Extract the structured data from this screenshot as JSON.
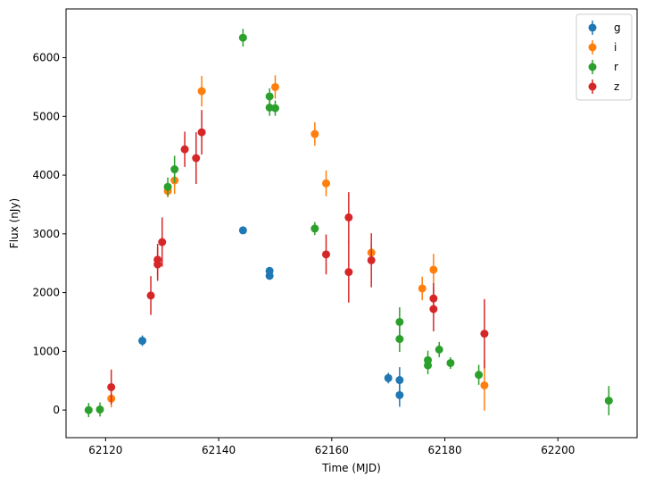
{
  "chart_data": {
    "type": "scatter",
    "xlabel": "Time (MJD)",
    "ylabel": "Flux (nJy)",
    "xlim": [
      62113,
      62214
    ],
    "ylim": [
      -470,
      6830
    ],
    "xticks": [
      62120,
      62140,
      62160,
      62180,
      62200
    ],
    "yticks": [
      0,
      1000,
      2000,
      3000,
      4000,
      5000,
      6000
    ],
    "grid": false,
    "legend_position": "top-right",
    "series": [
      {
        "name": "g",
        "color": "#1f77b4",
        "points": [
          {
            "x": 62126.5,
            "y": 1180,
            "err": 90
          },
          {
            "x": 62144.3,
            "y": 3060,
            "err": 50
          },
          {
            "x": 62149.0,
            "y": 2370,
            "err": 50
          },
          {
            "x": 62149.0,
            "y": 2285,
            "err": 50
          },
          {
            "x": 62170.0,
            "y": 545,
            "err": 90
          },
          {
            "x": 62172.0,
            "y": 510,
            "err": 220
          },
          {
            "x": 62172.0,
            "y": 255,
            "err": 200
          }
        ]
      },
      {
        "name": "i",
        "color": "#ff7f0e",
        "points": [
          {
            "x": 62121.0,
            "y": 195,
            "err": 150
          },
          {
            "x": 62131.0,
            "y": 3730,
            "err": 110
          },
          {
            "x": 62132.2,
            "y": 3910,
            "err": 230
          },
          {
            "x": 62137.0,
            "y": 5430,
            "err": 260
          },
          {
            "x": 62150.0,
            "y": 5500,
            "err": 200
          },
          {
            "x": 62157.0,
            "y": 4700,
            "err": 200
          },
          {
            "x": 62159.0,
            "y": 3860,
            "err": 220
          },
          {
            "x": 62167.0,
            "y": 2680,
            "err": 160
          },
          {
            "x": 62176.0,
            "y": 2070,
            "err": 200
          },
          {
            "x": 62178.0,
            "y": 2390,
            "err": 270
          },
          {
            "x": 62187.0,
            "y": 420,
            "err": 430
          }
        ]
      },
      {
        "name": "r",
        "color": "#2ca02c",
        "points": [
          {
            "x": 62117.0,
            "y": 0,
            "err": 120
          },
          {
            "x": 62119.0,
            "y": 10,
            "err": 120
          },
          {
            "x": 62131.0,
            "y": 3800,
            "err": 160
          },
          {
            "x": 62132.2,
            "y": 4100,
            "err": 230
          },
          {
            "x": 62144.3,
            "y": 6340,
            "err": 150
          },
          {
            "x": 62149.0,
            "y": 5340,
            "err": 140
          },
          {
            "x": 62149.0,
            "y": 5150,
            "err": 140
          },
          {
            "x": 62150.0,
            "y": 5140,
            "err": 130
          },
          {
            "x": 62157.0,
            "y": 3090,
            "err": 110
          },
          {
            "x": 62172.0,
            "y": 1500,
            "err": 250
          },
          {
            "x": 62172.0,
            "y": 1210,
            "err": 220
          },
          {
            "x": 62177.0,
            "y": 850,
            "err": 160
          },
          {
            "x": 62177.0,
            "y": 760,
            "err": 150
          },
          {
            "x": 62179.0,
            "y": 1030,
            "err": 130
          },
          {
            "x": 62181.0,
            "y": 800,
            "err": 100
          },
          {
            "x": 62186.0,
            "y": 600,
            "err": 170
          },
          {
            "x": 62209.0,
            "y": 160,
            "err": 250
          }
        ]
      },
      {
        "name": "z",
        "color": "#d62728",
        "points": [
          {
            "x": 62121.0,
            "y": 390,
            "err": 300
          },
          {
            "x": 62128.0,
            "y": 1950,
            "err": 330
          },
          {
            "x": 62129.2,
            "y": 2560,
            "err": 270
          },
          {
            "x": 62129.2,
            "y": 2480,
            "err": 280
          },
          {
            "x": 62130.0,
            "y": 2860,
            "err": 420
          },
          {
            "x": 62134.0,
            "y": 4440,
            "err": 300
          },
          {
            "x": 62136.0,
            "y": 4290,
            "err": 440
          },
          {
            "x": 62137.0,
            "y": 4730,
            "err": 380
          },
          {
            "x": 62159.0,
            "y": 2650,
            "err": 340
          },
          {
            "x": 62163.0,
            "y": 3280,
            "err": 430
          },
          {
            "x": 62163.0,
            "y": 2350,
            "err": 520
          },
          {
            "x": 62167.0,
            "y": 2550,
            "err": 460
          },
          {
            "x": 62178.0,
            "y": 1900,
            "err": 260
          },
          {
            "x": 62178.0,
            "y": 1720,
            "err": 380
          },
          {
            "x": 62187.0,
            "y": 1300,
            "err": 590
          }
        ]
      }
    ]
  }
}
